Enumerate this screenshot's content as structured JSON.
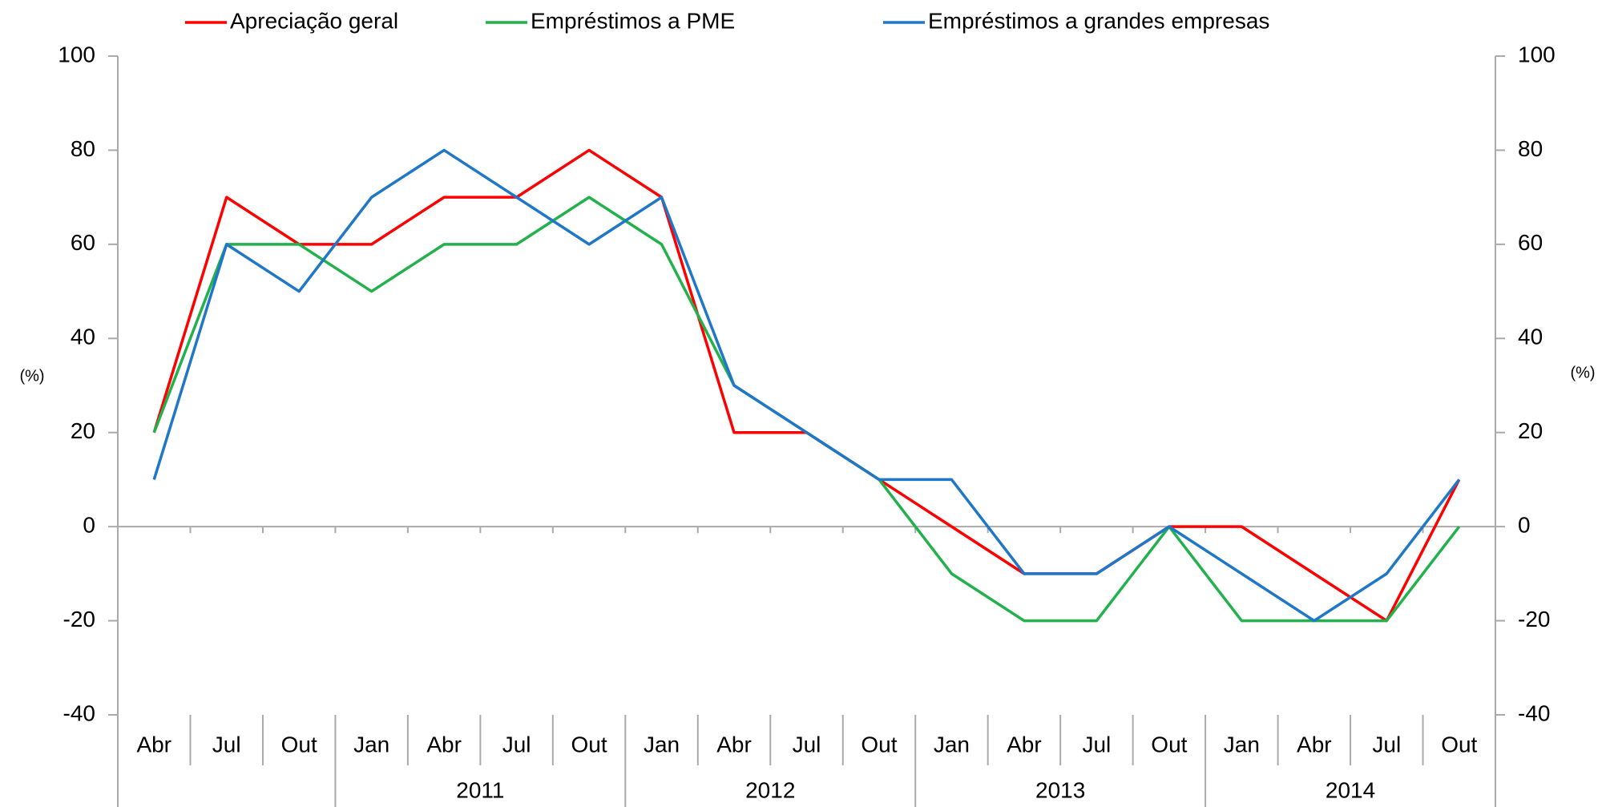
{
  "chart_data": {
    "type": "line",
    "y_label": "(%)",
    "y2_label": "(%)",
    "categories": [
      "Abr",
      "Jul",
      "Out",
      "Jan",
      "Abr",
      "Jul",
      "Out",
      "Jan",
      "Abr",
      "Jul",
      "Out",
      "Jan",
      "Abr",
      "Jul",
      "Out",
      "Jan",
      "Abr",
      "Jul",
      "Out"
    ],
    "years": [
      null,
      null,
      null,
      "2011",
      "2011",
      "2011",
      "2011",
      "2012",
      "2012",
      "2012",
      "2012",
      "2013",
      "2013",
      "2013",
      "2013",
      "2014",
      "2014",
      "2014",
      "2014"
    ],
    "series": [
      {
        "name": "Apreciação geral",
        "color": "#ff0000",
        "values": [
          20,
          70,
          60,
          60,
          70,
          70,
          80,
          70,
          20,
          20,
          10,
          0,
          -10,
          -10,
          0,
          0,
          -10,
          -20,
          10
        ]
      },
      {
        "name": "Empréstimos a PME",
        "color": "#22b14c",
        "values": [
          20,
          60,
          60,
          50,
          60,
          60,
          70,
          60,
          30,
          20,
          10,
          -10,
          -20,
          -20,
          0,
          -20,
          -20,
          -20,
          0
        ]
      },
      {
        "name": "Empréstimos a grandes empresas",
        "color": "#1f77c8",
        "values": [
          10,
          60,
          50,
          70,
          80,
          70,
          60,
          70,
          30,
          20,
          10,
          10,
          -10,
          -10,
          0,
          -10,
          -20,
          -10,
          10
        ]
      }
    ],
    "ylim": [
      -40,
      100
    ],
    "yticks": [
      -40,
      -20,
      0,
      20,
      40,
      60,
      80,
      100
    ],
    "y2lim": [
      -40,
      100
    ],
    "y2ticks": [
      -40,
      -20,
      0,
      20,
      40,
      60,
      80,
      100
    ],
    "grid": false
  }
}
